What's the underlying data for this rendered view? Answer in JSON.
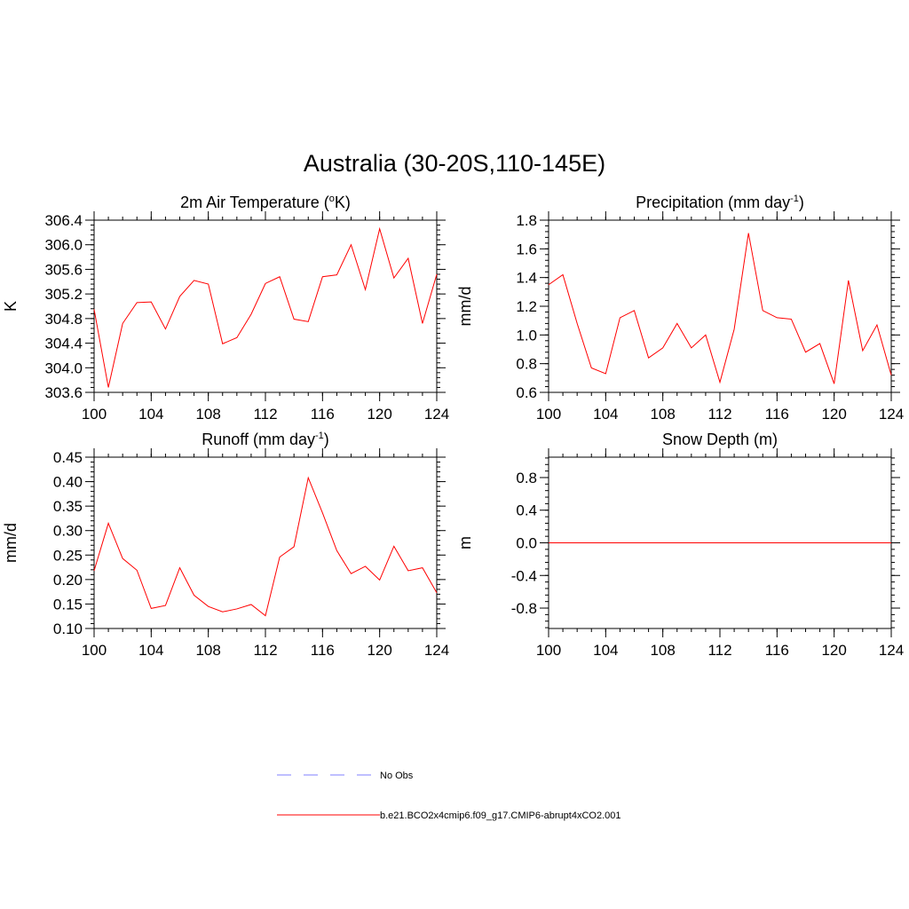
{
  "main_title": "Australia (30-20S,110-145E)",
  "colors": {
    "model": "#ff0000",
    "obs": "#9999ff",
    "axis": "#000000"
  },
  "legend": {
    "obs_label": "No Obs",
    "model_label": "b.e21.BCO2x4cmip6.f09_g17.CMIP6-abrupt4xCO2.001"
  },
  "chart_data": [
    {
      "id": "tas",
      "type": "line",
      "title": "2m Air Temperature (",
      "title_sup": "o",
      "title_tail": "K)",
      "ylabel": "K",
      "xlabel": "",
      "xlim": [
        100,
        124
      ],
      "ylim": [
        303.6,
        306.4
      ],
      "xticks": [
        100,
        104,
        108,
        112,
        116,
        120,
        124
      ],
      "yticks": [
        303.6,
        304.0,
        304.4,
        304.8,
        305.2,
        305.6,
        306.0,
        306.4
      ],
      "ytick_labels": [
        "303.6",
        "304.0",
        "304.4",
        "304.8",
        "305.2",
        "305.6",
        "306.0",
        "306.4"
      ],
      "grid": false,
      "series": [
        {
          "x": [
            100,
            101,
            102,
            103,
            104,
            105,
            106,
            107,
            108,
            109,
            110,
            111,
            112,
            113,
            114,
            115,
            116,
            117,
            118,
            119,
            120,
            121,
            122,
            123,
            124
          ],
          "values": [
            304.95,
            303.68,
            304.72,
            305.06,
            305.07,
            304.63,
            305.16,
            305.42,
            305.36,
            304.39,
            304.49,
            304.87,
            305.37,
            305.48,
            304.79,
            304.75,
            305.48,
            305.51,
            306.0,
            305.27,
            306.26,
            305.46,
            305.78,
            304.72,
            305.52
          ]
        }
      ]
    },
    {
      "id": "pr",
      "type": "line",
      "title": "Precipitation (mm day",
      "title_sup": "-1",
      "title_tail": ")",
      "ylabel": "mm/d",
      "xlabel": "",
      "xlim": [
        100,
        124
      ],
      "ylim": [
        0.6,
        1.8
      ],
      "xticks": [
        100,
        104,
        108,
        112,
        116,
        120,
        124
      ],
      "yticks": [
        0.6,
        0.8,
        1.0,
        1.2,
        1.4,
        1.6,
        1.8
      ],
      "ytick_labels": [
        "0.6",
        "0.8",
        "1.0",
        "1.2",
        "1.4",
        "1.6",
        "1.8"
      ],
      "grid": false,
      "series": [
        {
          "x": [
            100,
            101,
            102,
            103,
            104,
            105,
            106,
            107,
            108,
            109,
            110,
            111,
            112,
            113,
            114,
            115,
            116,
            117,
            118,
            119,
            120,
            121,
            122,
            123,
            124
          ],
          "values": [
            1.35,
            1.42,
            1.08,
            0.77,
            0.73,
            1.12,
            1.17,
            0.84,
            0.91,
            1.08,
            0.91,
            1.0,
            0.67,
            1.04,
            1.71,
            1.17,
            1.12,
            1.11,
            0.88,
            0.94,
            0.66,
            1.38,
            0.89,
            1.07,
            0.72
          ]
        }
      ]
    },
    {
      "id": "mrro",
      "type": "line",
      "title": "Runoff (mm day",
      "title_sup": "-1",
      "title_tail": ")",
      "ylabel": "mm/d",
      "xlabel": "",
      "xlim": [
        100,
        124
      ],
      "ylim": [
        0.1,
        0.45
      ],
      "xticks": [
        100,
        104,
        108,
        112,
        116,
        120,
        124
      ],
      "yticks": [
        0.1,
        0.15,
        0.2,
        0.25,
        0.3,
        0.35,
        0.4,
        0.45
      ],
      "ytick_labels": [
        "0.10",
        "0.15",
        "0.20",
        "0.25",
        "0.30",
        "0.35",
        "0.40",
        "0.45"
      ],
      "grid": false,
      "series": [
        {
          "x": [
            100,
            101,
            102,
            103,
            104,
            105,
            106,
            107,
            108,
            109,
            110,
            111,
            112,
            113,
            114,
            115,
            116,
            117,
            118,
            119,
            120,
            121,
            122,
            123,
            124
          ],
          "values": [
            0.218,
            0.315,
            0.243,
            0.219,
            0.141,
            0.147,
            0.224,
            0.168,
            0.145,
            0.134,
            0.14,
            0.149,
            0.126,
            0.246,
            0.267,
            0.408,
            0.336,
            0.259,
            0.212,
            0.227,
            0.199,
            0.268,
            0.218,
            0.224,
            0.173
          ]
        }
      ]
    },
    {
      "id": "snd",
      "type": "line",
      "title": "Snow Depth (m)",
      "title_sup": "",
      "title_tail": "",
      "ylabel": "m",
      "xlabel": "",
      "xlim": [
        100,
        124
      ],
      "ylim": [
        -1.05,
        1.05
      ],
      "xticks": [
        100,
        104,
        108,
        112,
        116,
        120,
        124
      ],
      "yticks": [
        -0.8,
        -0.4,
        0.0,
        0.4,
        0.8
      ],
      "ytick_labels": [
        "-0.8",
        "-0.4",
        "0.0",
        "0.4",
        "0.8"
      ],
      "grid": false,
      "series": [
        {
          "x": [
            100,
            101,
            102,
            103,
            104,
            105,
            106,
            107,
            108,
            109,
            110,
            111,
            112,
            113,
            114,
            115,
            116,
            117,
            118,
            119,
            120,
            121,
            122,
            123,
            124
          ],
          "values": [
            0,
            0,
            0,
            0,
            0,
            0,
            0,
            0,
            0,
            0,
            0,
            0,
            0,
            0,
            0,
            0,
            0,
            0,
            0,
            0,
            0,
            0,
            0,
            0,
            0
          ]
        }
      ]
    }
  ]
}
